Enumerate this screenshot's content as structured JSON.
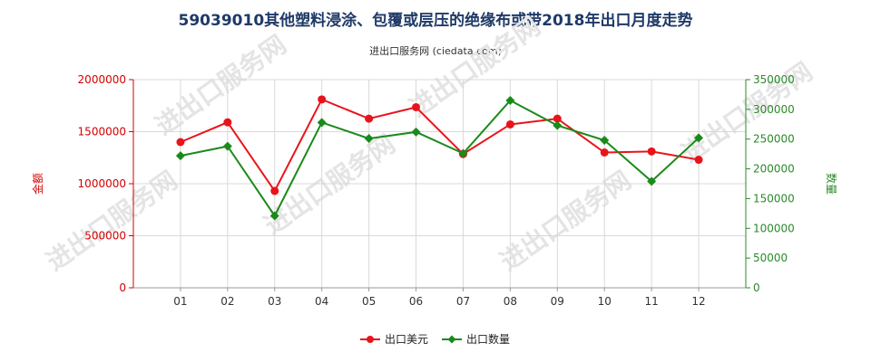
{
  "title": "59039010其他塑料浸涂、包覆或层压的绝缘布或带2018年出口月度走势",
  "subtitle": "进出口服务网 (ciedata.com)",
  "watermark": "进出口服务网",
  "colors": {
    "export_value": "#e8141b",
    "export_quantity": "#1a8a1a",
    "left_axis": "#d40000",
    "right_axis": "#2a8a2a"
  },
  "chart_data": {
    "type": "line",
    "categories": [
      "01",
      "02",
      "03",
      "04",
      "05",
      "06",
      "07",
      "08",
      "09",
      "10",
      "11",
      "12"
    ],
    "series": [
      {
        "name": "出口美元",
        "axis": "left",
        "values": [
          1400000,
          1590000,
          930000,
          1810000,
          1625000,
          1735000,
          1285000,
          1570000,
          1625000,
          1300000,
          1310000,
          1230000
        ]
      },
      {
        "name": "出口数量",
        "axis": "right",
        "values": [
          222000,
          238000,
          121000,
          278000,
          251000,
          262000,
          226000,
          315000,
          273000,
          248000,
          179000,
          252000
        ]
      }
    ],
    "ylabel": "金额",
    "y2label": "数量",
    "ylim": [
      0,
      2000000
    ],
    "y2lim": [
      0,
      350000
    ],
    "yticks": [
      "0",
      "500000",
      "1000000",
      "1500000",
      "2000000"
    ],
    "y2ticks": [
      "0",
      "50000",
      "100000",
      "150000",
      "200000",
      "250000",
      "300000",
      "350000"
    ],
    "grid": true,
    "legend_position": "bottom-center"
  }
}
